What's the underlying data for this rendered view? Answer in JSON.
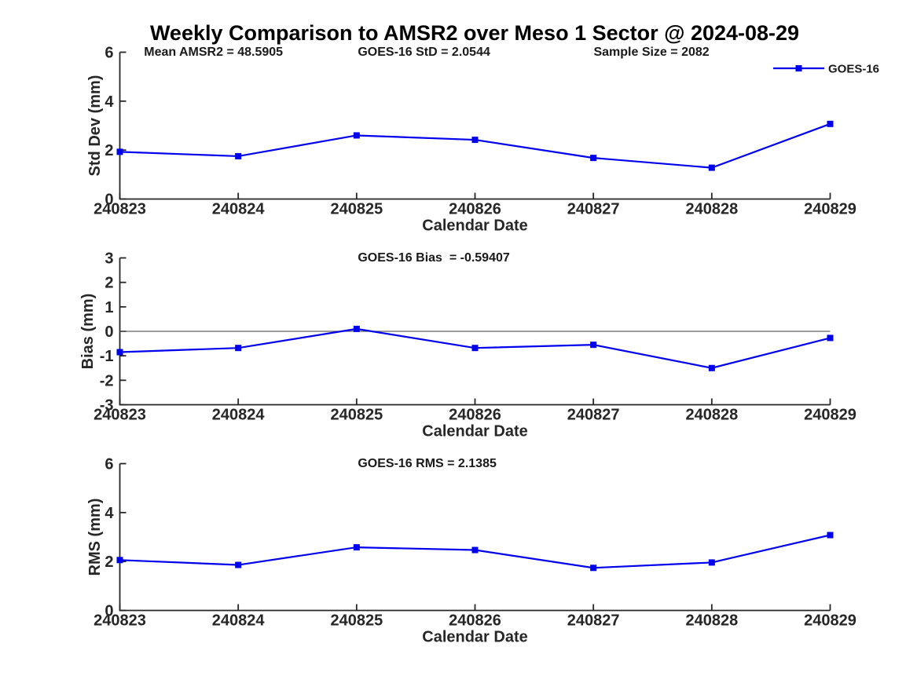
{
  "figure": {
    "title": "Weekly Comparison to AMSR2 over Meso 1 Sector @ 2024-08-29",
    "background_color": "#ffffff",
    "axes_color": "#262626",
    "series_color": "#0000ee",
    "zero_line_color": "#606060"
  },
  "legend": {
    "label": "GOES-16",
    "position": "top-right",
    "marker": "filled-square",
    "color": "#0000ee"
  },
  "chart_data": [
    {
      "type": "line",
      "ylabel": "Std Dev (mm)",
      "xlabel": "Calendar Date",
      "ylim": [
        0,
        6
      ],
      "yticks": [
        0,
        2,
        4,
        6
      ],
      "categories": [
        "240823",
        "240824",
        "240825",
        "240826",
        "240827",
        "240828",
        "240829"
      ],
      "series": [
        {
          "name": "GOES-16",
          "values": [
            1.93,
            1.75,
            2.6,
            2.42,
            1.68,
            1.28,
            3.07
          ]
        }
      ],
      "annotations": [
        {
          "text": "Mean AMSR2 = 48.5905",
          "xfrac": 0.034
        },
        {
          "text": "GOES-16 StD = 2.0544",
          "xfrac": 0.335
        },
        {
          "text": "Sample Size = 2082",
          "xfrac": 0.667
        }
      ],
      "zero_line": false,
      "grid": false,
      "show_legend": true
    },
    {
      "type": "line",
      "ylabel": "Bias (mm)",
      "xlabel": "Calendar Date",
      "ylim": [
        -3,
        3
      ],
      "yticks": [
        -3,
        -2,
        -1,
        0,
        1,
        2,
        3
      ],
      "categories": [
        "240823",
        "240824",
        "240825",
        "240826",
        "240827",
        "240828",
        "240829"
      ],
      "series": [
        {
          "name": "GOES-16",
          "values": [
            -0.85,
            -0.68,
            0.1,
            -0.68,
            -0.55,
            -1.5,
            -0.27
          ]
        }
      ],
      "annotations": [
        {
          "text": "GOES-16 Bias  = -0.59407",
          "xfrac": 0.335
        }
      ],
      "zero_line": true,
      "grid": false,
      "show_legend": false
    },
    {
      "type": "line",
      "ylabel": "RMS (mm)",
      "xlabel": "Calendar Date",
      "ylim": [
        0,
        6
      ],
      "yticks": [
        0,
        2,
        4,
        6
      ],
      "categories": [
        "240823",
        "240824",
        "240825",
        "240826",
        "240827",
        "240828",
        "240829"
      ],
      "series": [
        {
          "name": "GOES-16",
          "values": [
            2.06,
            1.86,
            2.58,
            2.47,
            1.74,
            1.96,
            3.08
          ]
        }
      ],
      "annotations": [
        {
          "text": "GOES-16 RMS = 2.1385",
          "xfrac": 0.335
        }
      ],
      "zero_line": false,
      "grid": false,
      "show_legend": false
    }
  ]
}
